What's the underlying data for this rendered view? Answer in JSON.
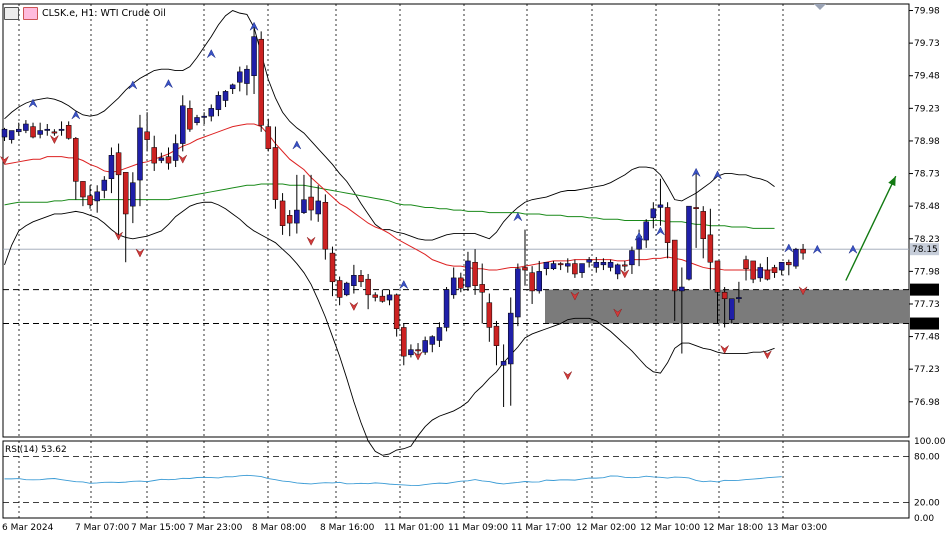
{
  "header": {
    "symbol_label": "CLSK.e, H1:  WTI Crude Oil"
  },
  "colors": {
    "bull": "#1f1fa8",
    "bear": "#c22",
    "ma_fast": "#d22",
    "ma_slow": "#1a8a1a",
    "band": "#000",
    "rsi": "#3a9bd5",
    "zone": "#7b7b7b",
    "arrow": "#127a12"
  },
  "chart_data": {
    "type": "candlestick",
    "title": "CLSK.e, H1:  WTI Crude Oil",
    "ylim": [
      76.71,
      80.03
    ],
    "y_ticks": [
      "79.98",
      "79.73",
      "79.48",
      "79.23",
      "78.98",
      "78.73",
      "78.48",
      "78.23",
      "77.98",
      "77.73",
      "77.48",
      "77.23",
      "76.98"
    ],
    "x_ticks": [
      "6 Mar 2024",
      "7 Mar 07:00",
      "7 Mar 15:00",
      "7 Mar 23:00",
      "8 Mar 08:00",
      "8 Mar 16:00",
      "11 Mar 01:00",
      "11 Mar 09:00",
      "11 Mar 17:00",
      "12 Mar 02:00",
      "12 Mar 10:00",
      "12 Mar 18:00",
      "13 Mar 03:00"
    ],
    "current_price": "78.15",
    "zone": {
      "upper": "77.84",
      "lower": "77.58"
    },
    "candles": [
      [
        79.01,
        79.08,
        79.07,
        78.98
      ],
      [
        78.99,
        79.06,
        79.06,
        78.96
      ],
      [
        79.05,
        79.12,
        79.07,
        79.02
      ],
      [
        79.06,
        79.14,
        79.11,
        79.04
      ],
      [
        79.09,
        79.12,
        79.01,
        79.0
      ],
      [
        79.03,
        79.12,
        79.06,
        79.0
      ],
      [
        79.06,
        79.11,
        79.07,
        79.02
      ],
      [
        79.05,
        79.07,
        79.04,
        79.02
      ],
      [
        79.06,
        79.13,
        79.07,
        79.02
      ],
      [
        79.1,
        79.13,
        79.0,
        78.99
      ],
      [
        79.0,
        79.01,
        78.67,
        78.53
      ],
      [
        78.67,
        78.67,
        78.55,
        78.48
      ],
      [
        78.56,
        78.64,
        78.49,
        78.46
      ],
      [
        78.52,
        78.64,
        78.59,
        78.43
      ],
      [
        78.6,
        78.71,
        78.68,
        78.54
      ],
      [
        78.69,
        78.93,
        78.87,
        78.58
      ],
      [
        78.89,
        78.96,
        78.72,
        78.26
      ],
      [
        78.74,
        78.74,
        78.42,
        78.05
      ],
      [
        78.48,
        78.74,
        78.66,
        78.35
      ],
      [
        78.68,
        79.18,
        79.08,
        78.48
      ],
      [
        79.05,
        79.2,
        78.99,
        78.9
      ],
      [
        78.93,
        79.02,
        78.81,
        78.75
      ],
      [
        78.83,
        78.89,
        78.85,
        78.81
      ],
      [
        78.86,
        78.93,
        78.81,
        78.76
      ],
      [
        78.83,
        79.03,
        78.96,
        78.78
      ],
      [
        78.96,
        79.33,
        79.25,
        78.9
      ],
      [
        79.23,
        79.29,
        79.07,
        79.05
      ],
      [
        79.12,
        79.18,
        79.16,
        79.1
      ],
      [
        79.16,
        79.2,
        79.17,
        79.11
      ],
      [
        79.17,
        79.26,
        79.23,
        79.13
      ],
      [
        79.22,
        79.36,
        79.33,
        79.17
      ],
      [
        79.29,
        79.37,
        79.36,
        79.24
      ],
      [
        79.38,
        79.42,
        79.41,
        79.34
      ],
      [
        79.43,
        79.55,
        79.51,
        79.36
      ],
      [
        79.42,
        79.56,
        79.53,
        79.33
      ],
      [
        79.48,
        79.88,
        79.78,
        79.34
      ],
      [
        79.76,
        79.82,
        79.1,
        79.05
      ],
      [
        79.09,
        79.15,
        78.92,
        78.9
      ],
      [
        78.93,
        79.09,
        78.53,
        78.46
      ],
      [
        78.52,
        78.58,
        78.33,
        78.26
      ],
      [
        78.41,
        78.45,
        78.35,
        78.25
      ],
      [
        78.35,
        78.72,
        78.45,
        78.27
      ],
      [
        78.43,
        78.72,
        78.53,
        78.42
      ],
      [
        78.55,
        78.72,
        78.45,
        78.37
      ],
      [
        78.42,
        78.64,
        78.52,
        78.36
      ],
      [
        78.51,
        78.57,
        78.15,
        78.07
      ],
      [
        78.12,
        78.17,
        77.9,
        77.79
      ],
      [
        77.91,
        77.94,
        77.78,
        77.72
      ],
      [
        77.8,
        77.9,
        77.89,
        77.79
      ],
      [
        77.87,
        78.03,
        77.95,
        77.81
      ],
      [
        77.95,
        77.99,
        77.9,
        77.86
      ],
      [
        77.92,
        77.96,
        77.8,
        77.69
      ],
      [
        77.8,
        77.82,
        77.78,
        77.75
      ],
      [
        77.79,
        77.84,
        77.75,
        77.74
      ],
      [
        77.76,
        77.84,
        77.8,
        77.72
      ],
      [
        77.8,
        77.81,
        77.54,
        77.48
      ],
      [
        77.55,
        77.58,
        77.33,
        77.26
      ],
      [
        77.34,
        77.42,
        77.38,
        77.32
      ],
      [
        77.38,
        77.43,
        77.37,
        77.32
      ],
      [
        77.36,
        77.48,
        77.45,
        77.34
      ],
      [
        77.42,
        77.49,
        77.48,
        77.36
      ],
      [
        77.45,
        77.59,
        77.55,
        77.4
      ],
      [
        77.55,
        77.86,
        77.84,
        77.52
      ],
      [
        77.8,
        78.01,
        77.93,
        77.77
      ],
      [
        77.93,
        77.97,
        77.85,
        77.82
      ],
      [
        77.86,
        78.13,
        78.06,
        77.83
      ],
      [
        78.05,
        78.15,
        77.87,
        77.8
      ],
      [
        77.88,
        78.04,
        77.82,
        77.58
      ],
      [
        77.74,
        77.81,
        77.55,
        77.44
      ],
      [
        77.56,
        77.6,
        77.41,
        77.26
      ],
      [
        77.26,
        77.42,
        77.29,
        76.94
      ],
      [
        77.27,
        77.78,
        77.66,
        76.95
      ],
      [
        77.63,
        78.04,
        78.0,
        77.56
      ],
      [
        78.01,
        78.3,
        77.99,
        77.87
      ],
      [
        77.97,
        78.02,
        77.83,
        77.73
      ],
      [
        77.83,
        78.06,
        77.98,
        77.81
      ],
      [
        78.0,
        78.05,
        78.05,
        77.95
      ],
      [
        78.0,
        78.06,
        78.04,
        77.99
      ],
      [
        78.04,
        78.05,
        78.03,
        77.99
      ],
      [
        78.02,
        78.08,
        78.04,
        77.97
      ],
      [
        78.04,
        78.07,
        77.96,
        77.93
      ],
      [
        77.97,
        78.02,
        78.04,
        77.93
      ],
      [
        78.05,
        78.09,
        78.07,
        78.01
      ],
      [
        78.01,
        78.09,
        78.05,
        77.97
      ],
      [
        78.03,
        78.08,
        78.05,
        77.99
      ],
      [
        78.01,
        78.07,
        78.05,
        77.98
      ],
      [
        77.96,
        78.04,
        78.03,
        77.92
      ],
      [
        78.03,
        78.06,
        78.02,
        77.98
      ],
      [
        78.03,
        78.17,
        78.14,
        77.96
      ],
      [
        78.15,
        78.3,
        78.25,
        78.02
      ],
      [
        78.22,
        78.38,
        78.36,
        78.16
      ],
      [
        78.39,
        78.51,
        78.46,
        78.31
      ],
      [
        78.47,
        78.69,
        78.49,
        78.33
      ],
      [
        78.47,
        78.51,
        78.2,
        78.08
      ],
      [
        78.22,
        78.22,
        77.83,
        77.6
      ],
      [
        77.83,
        78.01,
        77.86,
        77.35
      ],
      [
        77.92,
        78.38,
        78.48,
        77.91
      ],
      [
        78.47,
        78.73,
        78.46,
        78.16
      ],
      [
        78.44,
        78.48,
        78.23,
        78.08
      ],
      [
        78.26,
        78.46,
        78.05,
        77.84
      ],
      [
        78.06,
        78.06,
        77.82,
        77.58
      ],
      [
        77.82,
        77.86,
        77.77,
        77.55
      ],
      [
        77.61,
        77.73,
        77.77,
        77.58
      ],
      [
        77.77,
        77.9,
        77.78,
        77.74
      ],
      [
        78.07,
        78.1,
        78.0,
        77.91
      ],
      [
        78.06,
        78.05,
        77.92,
        77.89
      ],
      [
        77.93,
        78.04,
        78.01,
        77.9
      ],
      [
        77.99,
        78.09,
        77.92,
        77.91
      ],
      [
        78.01,
        78.03,
        77.97,
        77.93
      ],
      [
        77.99,
        78.02,
        78.05,
        77.95
      ],
      [
        78.05,
        78.07,
        78.03,
        77.95
      ],
      [
        78.02,
        78.16,
        78.15,
        78.0
      ],
      [
        78.15,
        78.19,
        78.12,
        78.07
      ]
    ],
    "ma_fast": [
      78.8,
      78.81,
      78.82,
      78.83,
      78.84,
      78.84,
      78.86,
      78.86,
      78.86,
      78.85,
      78.85,
      78.83,
      78.8,
      78.78,
      78.75,
      78.74,
      78.75,
      78.77,
      78.79,
      78.81,
      78.82,
      78.84,
      78.86,
      78.88,
      78.91,
      78.94,
      78.96,
      78.99,
      79.01,
      79.03,
      79.05,
      79.07,
      79.09,
      79.1,
      79.11,
      79.11,
      79.09,
      79.03,
      78.96,
      78.9,
      78.84,
      78.8,
      78.76,
      78.7,
      78.65,
      78.6,
      78.55,
      78.5,
      78.47,
      78.43,
      78.39,
      78.35,
      78.32,
      78.3,
      78.27,
      78.23,
      78.2,
      78.17,
      78.14,
      78.11,
      78.07,
      78.05,
      78.03,
      78.02,
      78.02,
      78.01,
      78.0,
      78.0,
      77.99,
      77.99,
      78.0,
      78.01,
      78.01,
      78.02,
      78.03,
      78.04,
      78.05,
      78.06,
      78.06,
      78.06,
      78.07,
      78.07,
      78.07,
      78.07,
      78.07,
      78.07,
      78.06,
      78.06,
      78.07,
      78.07,
      78.07,
      78.08,
      78.08,
      78.09,
      78.08,
      78.07,
      78.05,
      78.03,
      78.01,
      78.0,
      78.0,
      77.99,
      77.99,
      77.99,
      77.99,
      77.99,
      77.99,
      77.99,
      77.99
    ],
    "ma_slow": [
      78.49,
      78.5,
      78.51,
      78.51,
      78.51,
      78.51,
      78.51,
      78.52,
      78.52,
      78.53,
      78.53,
      78.53,
      78.53,
      78.53,
      78.53,
      78.53,
      78.53,
      78.53,
      78.53,
      78.53,
      78.53,
      78.53,
      78.53,
      78.53,
      78.54,
      78.55,
      78.56,
      78.57,
      78.58,
      78.59,
      78.6,
      78.61,
      78.62,
      78.63,
      78.64,
      78.64,
      78.65,
      78.65,
      78.65,
      78.65,
      78.64,
      78.64,
      78.64,
      78.63,
      78.62,
      78.61,
      78.6,
      78.59,
      78.58,
      78.57,
      78.56,
      78.55,
      78.54,
      78.53,
      78.52,
      78.5,
      78.49,
      78.49,
      78.48,
      78.47,
      78.47,
      78.46,
      78.46,
      78.45,
      78.45,
      78.44,
      78.44,
      78.44,
      78.43,
      78.43,
      78.43,
      78.43,
      78.43,
      78.42,
      78.42,
      78.42,
      78.41,
      78.41,
      78.41,
      78.4,
      78.4,
      78.4,
      78.39,
      78.39,
      78.38,
      78.38,
      78.38,
      78.37,
      78.37,
      78.37,
      78.37,
      78.37,
      78.37,
      78.36,
      78.36,
      78.36,
      78.35,
      78.34,
      78.34,
      78.33,
      78.33,
      78.33,
      78.32,
      78.32,
      78.32,
      78.31,
      78.31,
      78.31,
      78.31
    ],
    "band_upper": [
      79.15,
      79.2,
      79.24,
      79.27,
      79.29,
      79.3,
      79.31,
      79.3,
      79.28,
      79.25,
      79.21,
      79.18,
      79.17,
      79.18,
      79.21,
      79.26,
      79.31,
      79.37,
      79.42,
      79.46,
      79.49,
      79.52,
      79.53,
      79.53,
      79.52,
      79.52,
      79.55,
      79.62,
      79.7,
      79.78,
      79.87,
      79.94,
      79.98,
      79.96,
      79.95,
      79.85,
      79.65,
      79.45,
      79.31,
      79.2,
      79.13,
      79.08,
      79.04,
      78.98,
      78.92,
      78.86,
      78.8,
      78.73,
      78.67,
      78.59,
      78.5,
      78.42,
      78.34,
      78.3,
      78.3,
      78.28,
      78.27,
      78.25,
      78.23,
      78.22,
      78.22,
      78.24,
      78.26,
      78.27,
      78.27,
      78.27,
      78.27,
      78.25,
      78.23,
      78.28,
      78.36,
      78.42,
      78.47,
      78.51,
      78.53,
      78.54,
      78.55,
      78.57,
      78.59,
      78.6,
      78.6,
      78.61,
      78.62,
      78.63,
      78.64,
      78.66,
      78.69,
      78.72,
      78.76,
      78.78,
      78.78,
      78.77,
      78.72,
      78.63,
      78.53,
      78.52,
      78.55,
      78.58,
      78.62,
      78.66,
      78.71,
      78.73,
      78.73,
      78.72,
      78.72,
      78.7,
      78.69,
      78.67,
      78.63
    ],
    "band_lower": [
      78.03,
      78.18,
      78.29,
      78.33,
      78.36,
      78.38,
      78.4,
      78.42,
      78.42,
      78.43,
      78.44,
      78.43,
      78.41,
      78.39,
      78.35,
      78.3,
      78.26,
      78.24,
      78.23,
      78.24,
      78.25,
      78.27,
      78.29,
      78.34,
      78.4,
      78.44,
      78.48,
      78.5,
      78.51,
      78.51,
      78.49,
      78.46,
      78.42,
      78.38,
      78.33,
      78.29,
      78.26,
      78.23,
      78.2,
      78.15,
      78.1,
      78.04,
      77.97,
      77.88,
      77.76,
      77.63,
      77.48,
      77.33,
      77.16,
      76.98,
      76.82,
      76.68,
      76.6,
      76.57,
      76.58,
      76.61,
      76.62,
      76.64,
      76.72,
      76.79,
      76.84,
      76.87,
      76.89,
      76.91,
      76.94,
      76.98,
      77.05,
      77.1,
      77.16,
      77.21,
      77.28,
      77.34,
      77.4,
      77.47,
      77.5,
      77.52,
      77.54,
      77.56,
      77.58,
      77.61,
      77.62,
      77.62,
      77.62,
      77.6,
      77.56,
      77.52,
      77.47,
      77.42,
      77.37,
      77.31,
      77.25,
      77.21,
      77.2,
      77.28,
      77.39,
      77.43,
      77.43,
      77.41,
      77.39,
      77.38,
      77.36,
      77.35,
      77.35,
      77.35,
      77.35,
      77.36,
      77.36,
      77.37,
      77.39
    ],
    "up_arrows": [
      [
        4,
        79.3
      ],
      [
        10,
        79.21
      ],
      [
        18,
        79.44
      ],
      [
        23,
        79.45
      ],
      [
        29,
        79.68
      ],
      [
        35,
        79.89
      ],
      [
        41,
        78.98
      ],
      [
        56,
        77.91
      ],
      [
        72,
        78.43
      ],
      [
        89,
        78.28
      ],
      [
        92,
        78.32
      ],
      [
        97,
        78.77
      ],
      [
        100,
        78.75
      ],
      [
        110,
        78.19
      ],
      [
        114,
        78.18
      ],
      [
        119,
        78.18
      ]
    ],
    "down_arrows": [
      [
        0,
        78.8
      ],
      [
        7,
        78.96
      ],
      [
        16,
        78.22
      ],
      [
        19,
        78.09
      ],
      [
        25,
        78.81
      ],
      [
        43,
        78.18
      ],
      [
        49,
        77.68
      ],
      [
        58,
        77.3
      ],
      [
        79,
        77.15
      ],
      [
        80,
        77.76
      ],
      [
        86,
        77.63
      ],
      [
        87,
        77.93
      ],
      [
        101,
        77.35
      ],
      [
        107,
        77.31
      ],
      [
        112,
        77.8
      ]
    ],
    "forecast_arrow": [
      [
        118,
        77.91
      ],
      [
        125,
        78.71
      ]
    ],
    "rsi": {
      "label": "RSI(14) 53.62",
      "period": 14,
      "ylim": [
        0,
        100
      ],
      "ticks": [
        "100.00",
        "80.00",
        "20.00",
        "0.00"
      ],
      "levels": [
        80,
        20
      ],
      "values": [
        50.8,
        50.8,
        51.2,
        49.8,
        49.6,
        49.8,
        50.8,
        51.3,
        49.8,
        48.5,
        47.1,
        46.8,
        45.1,
        45.5,
        46.4,
        46.5,
        46.1,
        46.6,
        47.6,
        48.0,
        47.2,
        48.7,
        50.3,
        49.8,
        50.3,
        51.5,
        51.3,
        52.6,
        52.9,
        52.5,
        52.0,
        53.6,
        53.5,
        54.8,
        55.5,
        54.8,
        53.8,
        51.2,
        49.7,
        48.0,
        47.2,
        45.6,
        44.8,
        44.3,
        45.2,
        45.9,
        45.6,
        46.3,
        44.4,
        44.5,
        45.0,
        44.5,
        45.6,
        45.0,
        44.0,
        43.4,
        42.9,
        42.3,
        42.1,
        43.4,
        44.6,
        45.3,
        44.8,
        46.4,
        47.8,
        48.3,
        49.9,
        48.1,
        47.3,
        45.3,
        44.2,
        45.3,
        46.2,
        47.4,
        46.7,
        46.8,
        49.2,
        48.7,
        49.6,
        49.5,
        49.2,
        50.5,
        51.8,
        51.8,
        52.3,
        54.6,
        54.4,
        52.9,
        52.4,
        52.9,
        54.3,
        53.3,
        52.8,
        51.9,
        53.2,
        52.9,
        52.0,
        48.8,
        47.2,
        48.0,
        46.8,
        48.9,
        48.6,
        48.9,
        49.9,
        50.6,
        51.3,
        52.4,
        53.0,
        53.6
      ]
    }
  }
}
